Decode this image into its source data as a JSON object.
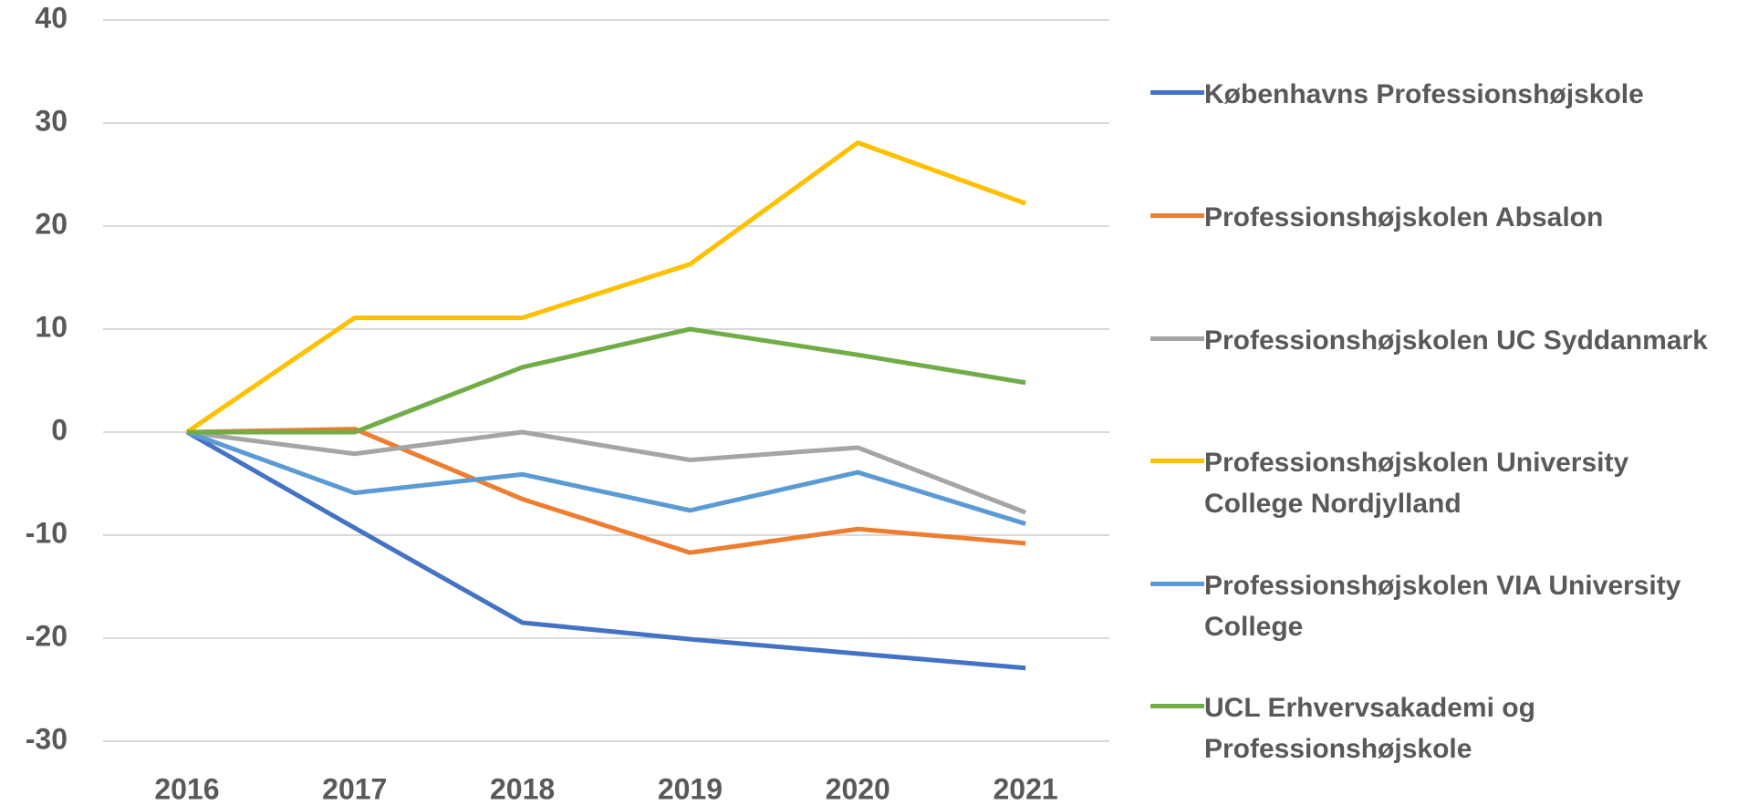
{
  "chart_data": {
    "type": "line",
    "categories": [
      "2016",
      "2017",
      "2018",
      "2019",
      "2020",
      "2021"
    ],
    "series": [
      {
        "name": "Københavns Professionshøjskole",
        "color": "#4472c4",
        "values": [
          0,
          -9.3,
          -18.5,
          -20.1,
          -21.5,
          -22.9
        ]
      },
      {
        "name": "Professionshøjskolen Absalon",
        "color": "#ed7d31",
        "values": [
          0,
          0.3,
          -6.5,
          -11.7,
          -9.4,
          -10.8
        ]
      },
      {
        "name": "Professionshøjskolen UC Syddanmark",
        "color": "#a5a5a5",
        "values": [
          0,
          -2.1,
          0,
          -2.7,
          -1.5,
          -7.8
        ]
      },
      {
        "name": "Professionshøjskolen University College Nordjylland",
        "color": "#ffc000",
        "values": [
          0,
          11.1,
          11.1,
          16.3,
          28.1,
          22.2
        ]
      },
      {
        "name": "Professionshøjskolen VIA University College",
        "color": "#5b9bd5",
        "values": [
          0,
          -5.9,
          -4.1,
          -7.6,
          -3.9,
          -8.9
        ]
      },
      {
        "name": "UCL Erhvervsakademi og Professionshøjskole",
        "color": "#70ad47",
        "values": [
          0,
          0,
          6.3,
          10,
          7.5,
          4.8
        ]
      }
    ],
    "ylim": [
      -30,
      40
    ],
    "yticks": [
      -30,
      -20,
      -10,
      0,
      10,
      20,
      30,
      40
    ],
    "grid": true,
    "legend": "right"
  }
}
